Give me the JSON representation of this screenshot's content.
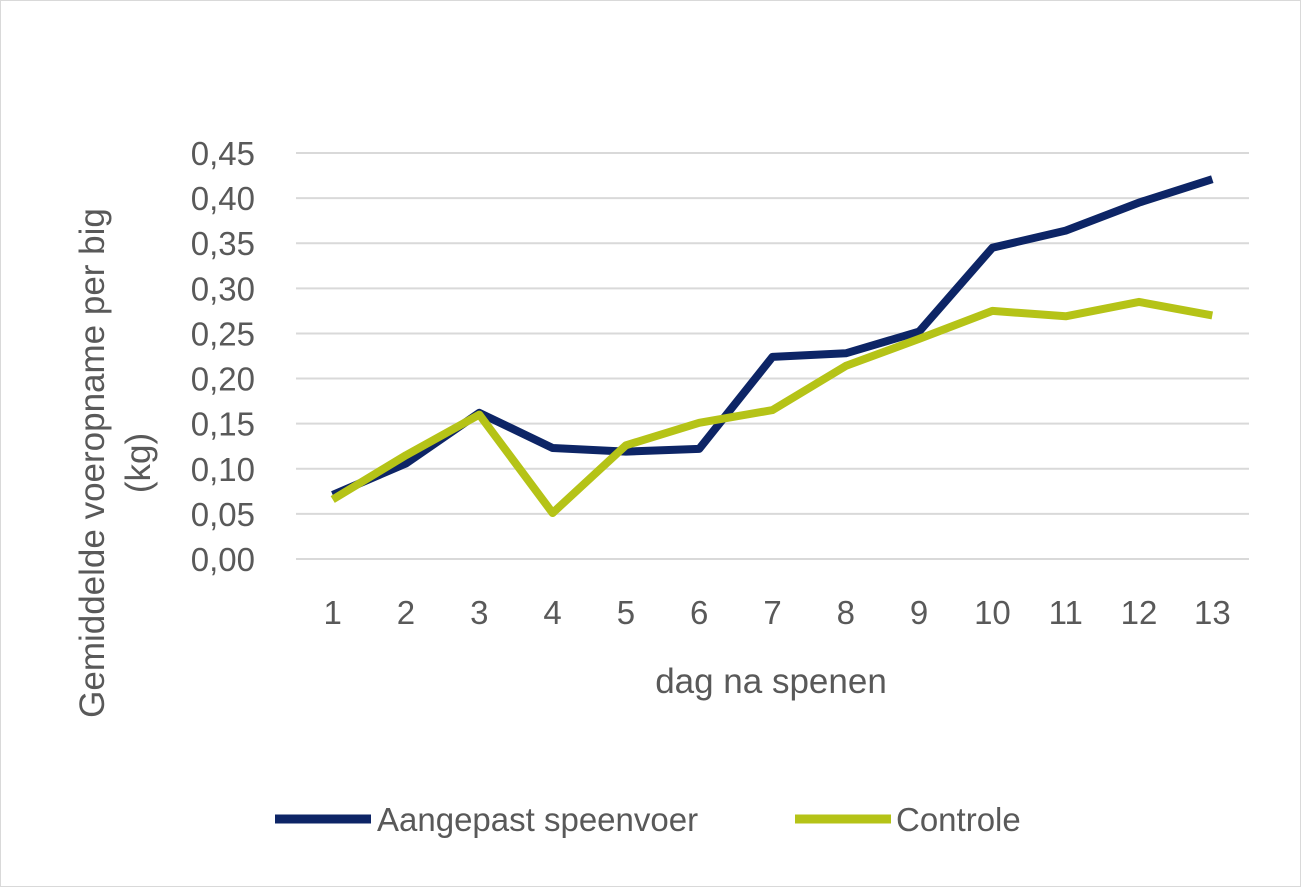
{
  "chart_data": {
    "type": "line",
    "title": "",
    "xlabel": "dag na spenen",
    "ylabel_lines": [
      "Gemiddelde voeropname per big",
      "(kg)"
    ],
    "x": [
      "1",
      "2",
      "3",
      "4",
      "5",
      "6",
      "7",
      "8",
      "9",
      "10",
      "11",
      "12",
      "13"
    ],
    "ylim": [
      0,
      0.45
    ],
    "yticks": [
      {
        "value": 0.0,
        "label": "0,00"
      },
      {
        "value": 0.05,
        "label": "0,05"
      },
      {
        "value": 0.1,
        "label": "0,10"
      },
      {
        "value": 0.15,
        "label": "0,15"
      },
      {
        "value": 0.2,
        "label": "0,20"
      },
      {
        "value": 0.25,
        "label": "0,25"
      },
      {
        "value": 0.3,
        "label": "0,30"
      },
      {
        "value": 0.35,
        "label": "0,35"
      },
      {
        "value": 0.4,
        "label": "0,40"
      },
      {
        "value": 0.45,
        "label": "0,45"
      }
    ],
    "grid": true,
    "legend_position": "bottom",
    "series": [
      {
        "name": "Aangepast speenvoer",
        "color": "#0d2566",
        "values": [
          0.071,
          0.106,
          0.162,
          0.123,
          0.119,
          0.122,
          0.224,
          0.228,
          0.252,
          0.345,
          0.364,
          0.395,
          0.421
        ]
      },
      {
        "name": "Controle",
        "color": "#b5c317",
        "values": [
          0.066,
          0.115,
          0.16,
          0.051,
          0.126,
          0.151,
          0.165,
          0.214,
          0.244,
          0.275,
          0.269,
          0.285,
          0.27
        ]
      }
    ]
  }
}
